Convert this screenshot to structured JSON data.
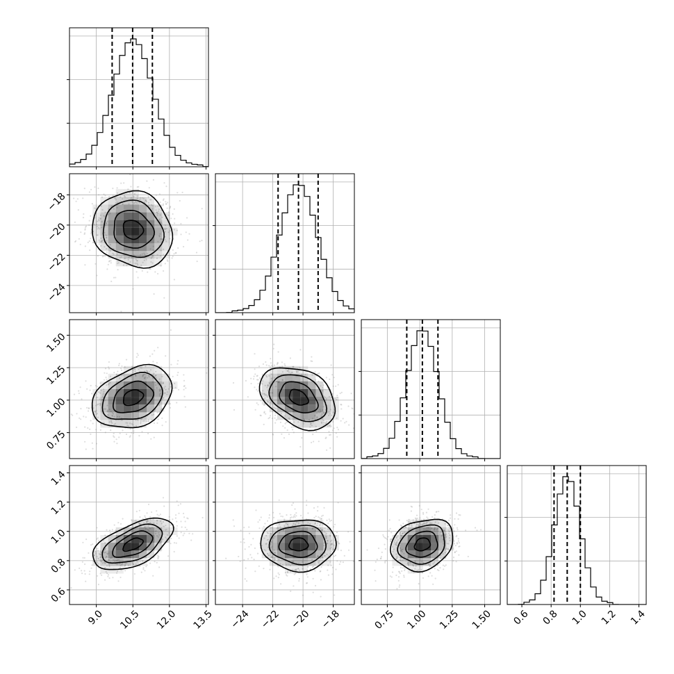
{
  "chart_data": {
    "type": "corner",
    "grid": true,
    "colors": {
      "lines": "#000000",
      "density": "#000000",
      "scatter": "#8a8a8a",
      "grid": "#b0b0b0"
    },
    "parameters": [
      {
        "index": 0,
        "range": [
          7.9,
          13.6
        ],
        "ticks": [
          9.0,
          10.5,
          12.0,
          13.5
        ],
        "tick_labels": [
          "9.0",
          "10.5",
          "12.0",
          "13.5"
        ],
        "mean": 10.5,
        "sd": 0.82,
        "quantiles": [
          9.65,
          10.49,
          11.3
        ]
      },
      {
        "index": 1,
        "range": [
          -25.8,
          -16.6
        ],
        "ticks": [
          -24,
          -22,
          -20,
          -18
        ],
        "tick_labels": [
          "−24",
          "−22",
          "−20",
          "−18"
        ],
        "mean": -20.3,
        "sd": 1.25,
        "quantiles": [
          -21.65,
          -20.3,
          -19.0
        ]
      },
      {
        "index": 2,
        "range": [
          0.55,
          1.62
        ],
        "ticks": [
          0.75,
          1.0,
          1.25,
          1.5
        ],
        "tick_labels": [
          "0.75",
          "1.00",
          "1.25",
          "1.50"
        ],
        "mean": 1.02,
        "sd": 0.12,
        "quantiles": [
          0.9,
          1.02,
          1.14
        ]
      },
      {
        "index": 3,
        "range": [
          0.5,
          1.45
        ],
        "ticks": [
          0.6,
          0.8,
          1.0,
          1.2,
          1.4
        ],
        "tick_labels": [
          "0.6",
          "0.8",
          "1.0",
          "1.2",
          "1.4"
        ],
        "mean": 0.91,
        "sd": 0.088,
        "quantiles": [
          0.82,
          0.91,
          1.0
        ]
      }
    ],
    "correlations": [
      {
        "pair": [
          1,
          0
        ],
        "rho": -0.12
      },
      {
        "pair": [
          2,
          0
        ],
        "rho": 0.3
      },
      {
        "pair": [
          2,
          1
        ],
        "rho": -0.35
      },
      {
        "pair": [
          3,
          0
        ],
        "rho": 0.55
      },
      {
        "pair": [
          3,
          1
        ],
        "rho": 0.0
      },
      {
        "pair": [
          3,
          2
        ],
        "rho": 0.2
      }
    ],
    "contour_levels_sigma": [
      0.5,
      1.0,
      1.5,
      2.0
    ]
  }
}
